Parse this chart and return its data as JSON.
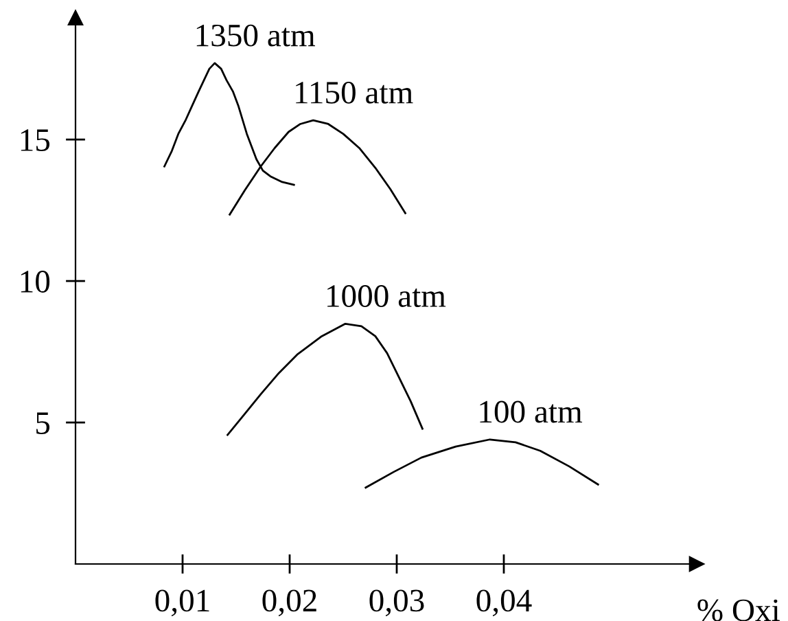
{
  "chart_data": {
    "type": "line",
    "xlabel": "% Oxi",
    "xlim": [
      0,
      0.058
    ],
    "ylim": [
      0,
      19.3
    ],
    "xticks": [
      {
        "value": 0.01,
        "label": "0,01"
      },
      {
        "value": 0.02,
        "label": "0,02"
      },
      {
        "value": 0.03,
        "label": "0,03"
      },
      {
        "value": 0.04,
        "label": "0,04"
      }
    ],
    "yticks": [
      5,
      10,
      15
    ],
    "grid": false,
    "legend": false,
    "marker": "none",
    "line_style": "solid",
    "series": [
      {
        "name": "1350 atm",
        "color": "#000000",
        "x": [
          0.0083,
          0.009,
          0.0096,
          0.0103,
          0.0109,
          0.0115,
          0.012,
          0.0125,
          0.013,
          0.0136,
          0.0141,
          0.0147,
          0.0152,
          0.016,
          0.0169,
          0.0175,
          0.0182,
          0.0193,
          0.0204
        ],
        "values": [
          14.05,
          14.6,
          15.2,
          15.7,
          16.2,
          16.7,
          17.1,
          17.5,
          17.7,
          17.5,
          17.1,
          16.7,
          16.2,
          15.2,
          14.3,
          13.9,
          13.7,
          13.5,
          13.4
        ]
      },
      {
        "name": "1150 atm",
        "color": "#000000",
        "x": [
          0.0144,
          0.0158,
          0.0173,
          0.0186,
          0.0199,
          0.021,
          0.0222,
          0.0236,
          0.025,
          0.0265,
          0.028,
          0.0294,
          0.0308
        ],
        "values": [
          12.35,
          13.2,
          14.05,
          14.7,
          15.27,
          15.55,
          15.68,
          15.55,
          15.2,
          14.7,
          14.0,
          13.25,
          12.4
        ]
      },
      {
        "name": "1000 atm",
        "color": "#000000",
        "x": [
          0.0142,
          0.0158,
          0.0173,
          0.019,
          0.0207,
          0.023,
          0.0252,
          0.0267,
          0.028,
          0.0291,
          0.0301,
          0.0313,
          0.0324
        ],
        "values": [
          4.56,
          5.3,
          6.0,
          6.75,
          7.4,
          8.05,
          8.49,
          8.4,
          8.05,
          7.45,
          6.68,
          5.75,
          4.78
        ]
      },
      {
        "name": "100 atm",
        "color": "#000000",
        "x": [
          0.0271,
          0.0297,
          0.0323,
          0.0355,
          0.0387,
          0.0411,
          0.0434,
          0.0461,
          0.0488
        ],
        "values": [
          2.7,
          3.25,
          3.76,
          4.15,
          4.4,
          4.3,
          4.0,
          3.45,
          2.81
        ]
      }
    ]
  }
}
